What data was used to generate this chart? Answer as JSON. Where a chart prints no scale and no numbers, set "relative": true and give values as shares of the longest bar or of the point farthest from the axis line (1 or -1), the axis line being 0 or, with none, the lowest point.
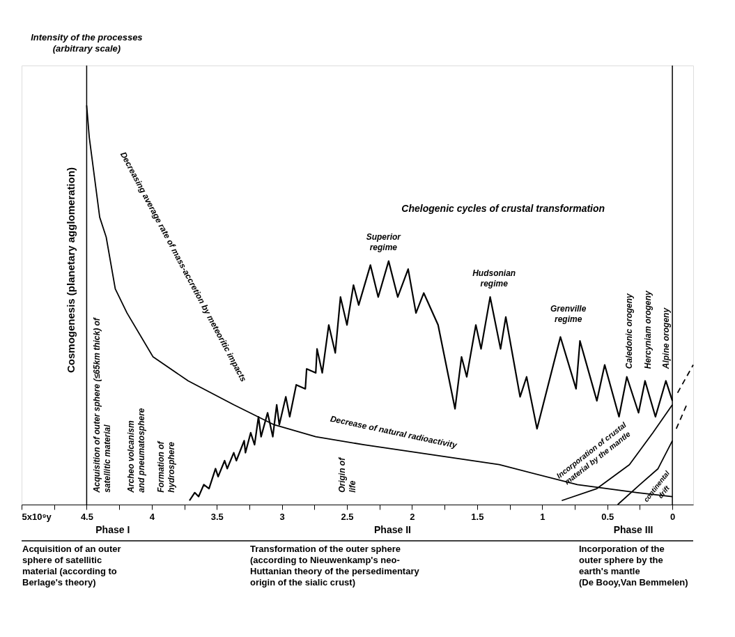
{
  "chart_data": {
    "type": "line",
    "relative": true,
    "tick_labels": "x",
    "xlim": [
      5,
      -0.16
    ],
    "xticks": [
      {
        "value": 5,
        "label": "5x10⁹y"
      },
      {
        "value": 4.75,
        "label": null
      },
      4.5,
      {
        "value": 4.25,
        "label": null
      },
      4,
      {
        "value": 3.75,
        "label": null
      },
      3.5,
      {
        "value": 3.25,
        "label": null
      },
      3,
      {
        "value": 2.75,
        "label": null
      },
      2.5,
      {
        "value": 2.25,
        "label": null
      },
      2,
      {
        "value": 1.75,
        "label": null
      },
      1.5,
      {
        "value": 1.25,
        "label": null
      },
      1,
      {
        "value": 0.75,
        "label": null
      },
      0.5,
      {
        "value": 0.25,
        "label": null
      },
      0
    ],
    "series": [
      {
        "color": "#000000",
        "x": [
          4.5,
          4.48,
          4.44,
          4.4,
          4.35,
          4.28,
          4.19,
          3.99,
          3.72,
          3.37,
          3.06,
          2.74,
          2.37,
          1.33,
          0.73,
          0.27,
          0
        ],
        "values": [
          1.0,
          0.92,
          0.82,
          0.72,
          0.67,
          0.54,
          0.48,
          0.37,
          0.31,
          0.25,
          0.2,
          0.17,
          0.15,
          0.1,
          0.05,
          0.03,
          0.02
        ]
      },
      {
        "color": "#000000",
        "x": [
          3.71,
          3.67,
          3.64,
          3.6,
          3.56,
          3.51,
          3.49,
          3.44,
          3.42,
          3.37,
          3.35,
          3.29,
          3.28,
          3.24,
          3.21,
          3.18,
          3.16,
          3.11,
          3.07,
          3.04,
          3.02,
          2.97,
          2.94,
          2.89,
          2.82,
          2.81,
          2.74,
          2.73,
          2.69,
          2.64,
          2.59,
          2.55,
          2.5,
          2.45,
          2.41,
          2.32,
          2.26,
          2.18,
          2.11,
          2.03,
          1.97,
          1.91,
          1.8,
          1.67,
          1.62,
          1.58,
          1.51,
          1.47,
          1.4,
          1.32,
          1.28,
          1.17,
          1.12,
          1.04,
          0.86,
          0.74,
          0.71,
          0.58,
          0.52,
          0.41,
          0.35,
          0.26,
          0.21,
          0.13,
          0.05,
          0
        ],
        "values": [
          0.01,
          0.03,
          0.02,
          0.05,
          0.04,
          0.09,
          0.07,
          0.11,
          0.09,
          0.13,
          0.11,
          0.16,
          0.13,
          0.18,
          0.15,
          0.22,
          0.17,
          0.23,
          0.17,
          0.25,
          0.2,
          0.27,
          0.22,
          0.3,
          0.29,
          0.34,
          0.33,
          0.39,
          0.33,
          0.45,
          0.38,
          0.52,
          0.45,
          0.55,
          0.5,
          0.6,
          0.52,
          0.61,
          0.52,
          0.59,
          0.48,
          0.53,
          0.45,
          0.24,
          0.37,
          0.32,
          0.45,
          0.39,
          0.52,
          0.39,
          0.47,
          0.27,
          0.32,
          0.19,
          0.42,
          0.29,
          0.41,
          0.26,
          0.35,
          0.22,
          0.32,
          0.23,
          0.31,
          0.22,
          0.31,
          0.26
        ]
      },
      {
        "color": "#000000",
        "x": [
          0.85,
          0.58,
          0.33,
          0.15,
          0
        ],
        "values": [
          0.01,
          0.04,
          0.1,
          0.18,
          0.25
        ]
      },
      {
        "color": "#000000",
        "line_style": "dashed",
        "x": [
          -0.04,
          -0.16
        ],
        "values": [
          0.28,
          0.35
        ]
      },
      {
        "color": "#000000",
        "x": [
          0.42,
          0.25,
          0.11,
          0
        ],
        "values": [
          0,
          0.05,
          0.09,
          0.16
        ]
      },
      {
        "color": "#000000",
        "line_style": "dashed",
        "x": [
          -0.03,
          -0.11
        ],
        "values": [
          0.19,
          0.25
        ]
      }
    ],
    "ref_lines": [
      {
        "axis": "x",
        "value": 4.5
      },
      {
        "axis": "x",
        "value": 0
      }
    ],
    "annotations": [
      "Intensity of the processes\n(arbitrary scale)",
      "Cosmogenesis   (planetary agglomeration)",
      "Acquisition of outer sphere (≤65km thick) of\nsatellitic material",
      "Archeo volcanism\nand pneumatosphere",
      "Formation of\nhydrosphere",
      "Origin of\nlife",
      "Decreasing average rate of mass-accretion by meteoritic impacts",
      "Decrease of natural radioactivity",
      "Chelogenic cycles of crustal transformation",
      "Superior\nregime",
      "Hudsonian\nregime",
      "Grenville\nregime",
      "Caledonic orogeny",
      "Hercyniam orogeny",
      "Alpine orogeny",
      "Incorporation of crustal\nmaterial by the mantle",
      "continental\ndrift",
      "Phase I",
      "Phase II",
      "Phase III",
      "Acquisition of an outer\nsphere of satellitic\nmaterial (according to\nBerlage's theory)",
      "Transformation of the outer sphere\n(according to Nieuwenkamp's neo-\nHuttanian theory of the persedimentary\norigin of the sialic crust)",
      "Incorporation of the\nouter sphere by the\nearth's mantle\n(De Booy,Van Bemmelen)"
    ]
  }
}
